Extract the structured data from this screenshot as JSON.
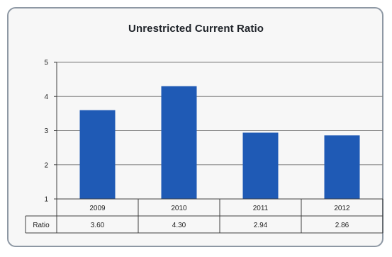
{
  "chart_data": {
    "type": "bar",
    "title": "Unrestricted Current Ratio",
    "categories": [
      "2009",
      "2010",
      "2011",
      "2012"
    ],
    "series": [
      {
        "name": "Ratio",
        "values": [
          3.6,
          4.3,
          2.94,
          2.86
        ],
        "color": "#1f5ab5"
      }
    ],
    "table_row_label": "Ratio",
    "table_values": [
      "3.60",
      "4.30",
      "2.94",
      "2.86"
    ],
    "y_ticks": [
      1,
      2,
      3,
      4,
      5
    ],
    "ylim": [
      1,
      5
    ],
    "grid": true,
    "legend": "none",
    "colors": {
      "bar": "#1f5ab5",
      "frame": "#8e98a4",
      "grid": "#7f7f7f"
    }
  }
}
